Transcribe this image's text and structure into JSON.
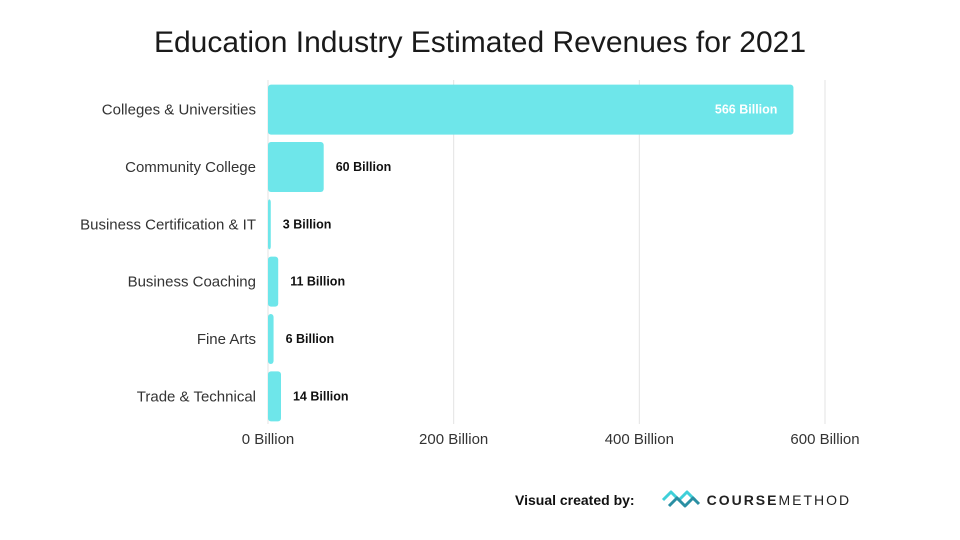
{
  "chart_data": {
    "type": "bar",
    "orientation": "horizontal",
    "title": "Education Industry Estimated Revenues for 2021",
    "categories": [
      "Colleges & Universities",
      "Community College",
      "Business Certification & IT",
      "Business Coaching",
      "Fine Arts",
      "Trade & Technical"
    ],
    "values": [
      566,
      60,
      3,
      11,
      6,
      14
    ],
    "data_labels": [
      "566 Billion",
      "60 Billion",
      "3 Billion",
      "11 Billion",
      "6 Billion",
      "14 Billion"
    ],
    "x_ticks": [
      0,
      200,
      400,
      600
    ],
    "x_tick_labels": [
      "0 Billion",
      "200 Billion",
      "400 Billion",
      "600 Billion"
    ],
    "xlim": [
      0,
      600
    ],
    "grid": true,
    "bar_color": "#6ee6ea",
    "grid_color": "#e3e3e3"
  },
  "footer": {
    "label": "Visual created by:",
    "brand_bold": "COURSE",
    "brand_regular": "METHOD",
    "brand_color": "#3fd0d9"
  }
}
